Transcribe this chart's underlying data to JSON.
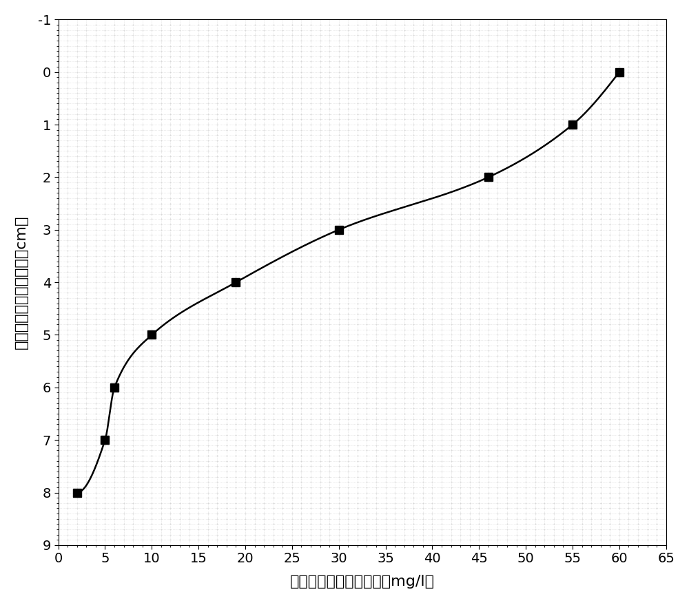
{
  "x": [
    2,
    5,
    6,
    10,
    19,
    30,
    46,
    55,
    60
  ],
  "y": [
    8,
    7,
    6,
    5,
    4,
    3,
    2,
    1,
    0
  ],
  "xlabel": "土壤孔隙水中钓浓度／（mg/l）",
  "ylabel": "双层粘土衬垫剖面图／（cm）",
  "xlim": [
    0,
    65
  ],
  "ylim": [
    9,
    -1
  ],
  "xticks": [
    0,
    5,
    10,
    15,
    20,
    25,
    30,
    35,
    40,
    45,
    50,
    55,
    60,
    65
  ],
  "yticks": [
    -1,
    0,
    1,
    2,
    3,
    4,
    5,
    6,
    7,
    8,
    9
  ],
  "line_color": "#000000",
  "marker": "s",
  "marker_color": "#000000",
  "marker_size": 9,
  "line_width": 1.8,
  "background_color": "#ffffff",
  "label_fontsize": 16,
  "tick_fontsize": 14,
  "grid_color": "#cccccc",
  "grid_dot_size": 1.5
}
